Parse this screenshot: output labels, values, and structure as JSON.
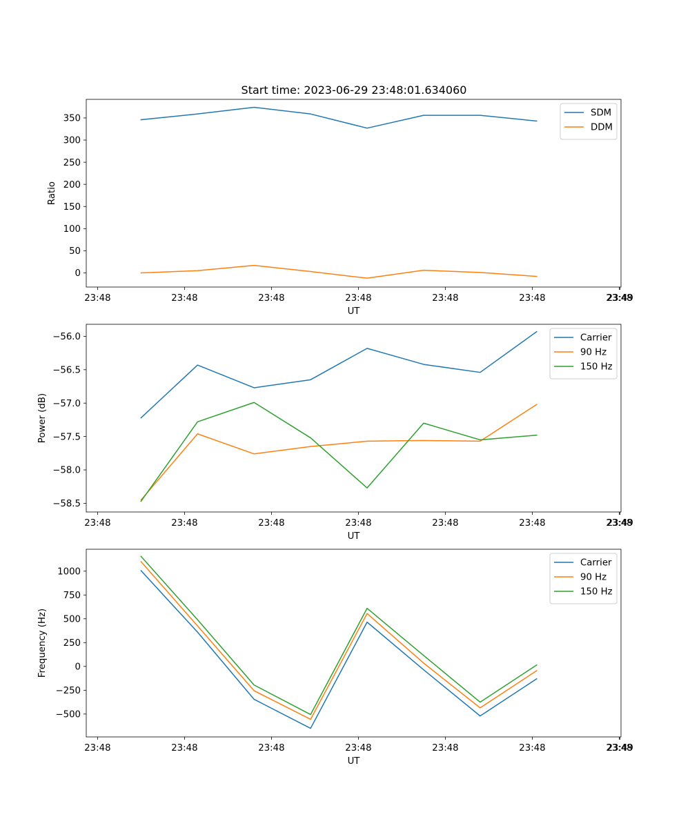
{
  "figure": {
    "title": "Start time: 2023-06-29 23:48:01.634060"
  },
  "chart_data": [
    {
      "type": "line",
      "title": "Start time: 2023-06-29 23:48:01.634060",
      "xlabel": "UT",
      "ylabel": "Ratio",
      "x_tick_labels": [
        "23:48",
        "23:48",
        "23:48",
        "23:48",
        "23:48",
        "23:48",
        "23:48"
      ],
      "x_end_tick_label": "23:49",
      "x_tick_positions": [
        0,
        1,
        2,
        3,
        4,
        5,
        6
      ],
      "x_end_tick_position": 6.01,
      "xlim": [
        -0.13,
        6.02
      ],
      "x": [
        0.5,
        1.15,
        1.8,
        2.45,
        3.1,
        3.75,
        4.4,
        5.05
      ],
      "ylim": [
        -32,
        392
      ],
      "yticks": [
        0,
        50,
        100,
        150,
        200,
        250,
        300,
        350
      ],
      "grid": false,
      "legend_position": "top-right",
      "series": [
        {
          "name": "SDM",
          "color": "#1f77b4",
          "values": [
            346,
            359,
            374,
            359,
            327,
            356,
            356,
            343
          ]
        },
        {
          "name": "DDM",
          "color": "#ff7f0e",
          "values": [
            0,
            5,
            17,
            3,
            -12,
            6,
            1,
            -8
          ]
        }
      ]
    },
    {
      "type": "line",
      "xlabel": "UT",
      "ylabel": "Power (dB)",
      "x_tick_labels": [
        "23:48",
        "23:48",
        "23:48",
        "23:48",
        "23:48",
        "23:48",
        "23:48"
      ],
      "x_end_tick_label": "23:49",
      "x_tick_positions": [
        0,
        1,
        2,
        3,
        4,
        5,
        6
      ],
      "x_end_tick_position": 6.01,
      "xlim": [
        -0.13,
        6.02
      ],
      "x": [
        0.5,
        1.15,
        1.8,
        2.45,
        3.1,
        3.75,
        4.4,
        5.05
      ],
      "ylim": [
        -58.63,
        -55.82
      ],
      "yticks": [
        -58.5,
        -58.0,
        -57.5,
        -57.0,
        -56.5,
        -56.0
      ],
      "ytick_labels": [
        "−58.5",
        "−58.0",
        "−57.5",
        "−57.0",
        "−56.5",
        "−56.0"
      ],
      "grid": false,
      "legend_position": "top-right",
      "series": [
        {
          "name": "Carrier",
          "color": "#1f77b4",
          "values": [
            -57.22,
            -56.43,
            -56.77,
            -56.65,
            -56.18,
            -56.42,
            -56.54,
            -55.93
          ]
        },
        {
          "name": "90 Hz",
          "color": "#ff7f0e",
          "values": [
            -58.45,
            -57.46,
            -57.76,
            -57.65,
            -57.57,
            -57.56,
            -57.57,
            -57.02
          ]
        },
        {
          "name": "150 Hz",
          "color": "#2ca02c",
          "values": [
            -58.47,
            -57.28,
            -56.99,
            -57.52,
            -58.27,
            -57.3,
            -57.55,
            -57.48
          ]
        }
      ]
    },
    {
      "type": "line",
      "xlabel": "UT",
      "ylabel": "Frequency (Hz)",
      "x_tick_labels": [
        "23:48",
        "23:48",
        "23:48",
        "23:48",
        "23:48",
        "23:48",
        "23:48"
      ],
      "x_end_tick_label": "23:49",
      "x_tick_positions": [
        0,
        1,
        2,
        3,
        4,
        5,
        6
      ],
      "x_end_tick_position": 6.01,
      "xlim": [
        -0.13,
        6.02
      ],
      "x": [
        0.5,
        1.15,
        1.8,
        2.45,
        3.1,
        3.75,
        4.4,
        5.05
      ],
      "ylim": [
        -740,
        1230
      ],
      "yticks": [
        -500,
        -250,
        0,
        250,
        500,
        750,
        1000
      ],
      "ytick_labels": [
        "−500",
        "−250",
        "0",
        "250",
        "500",
        "750",
        "1000"
      ],
      "grid": false,
      "legend_position": "top-right",
      "series": [
        {
          "name": "Carrier",
          "color": "#1f77b4",
          "values": [
            1005,
            360,
            -345,
            -650,
            465,
            -35,
            -520,
            -130
          ]
        },
        {
          "name": "90 Hz",
          "color": "#ff7f0e",
          "values": [
            1100,
            425,
            -255,
            -555,
            555,
            35,
            -435,
            -45
          ]
        },
        {
          "name": "150 Hz",
          "color": "#2ca02c",
          "values": [
            1155,
            490,
            -195,
            -505,
            610,
            115,
            -375,
            15
          ]
        }
      ]
    }
  ]
}
